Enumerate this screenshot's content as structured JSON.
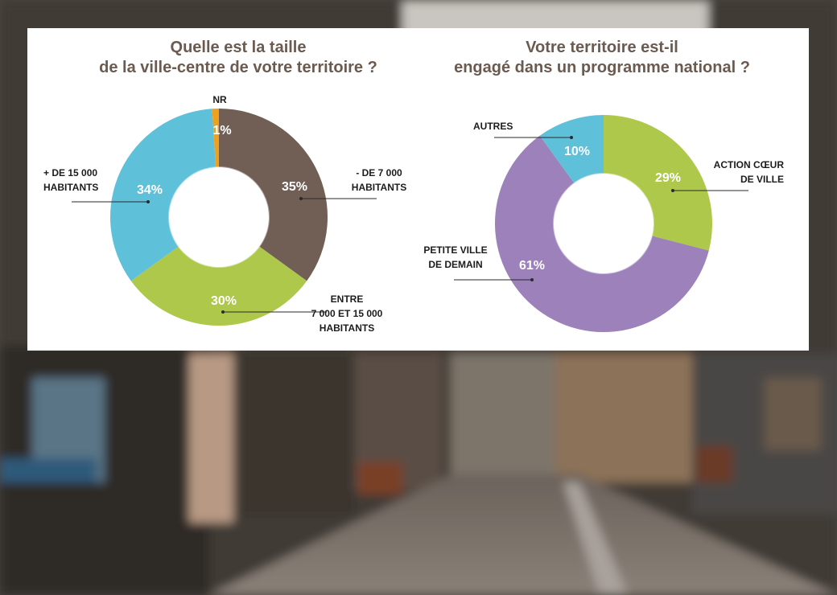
{
  "colors": {
    "brown": "#715e55",
    "green": "#adc84a",
    "blue": "#5fc0da",
    "orange": "#f0a11c",
    "purple": "#9d81ba",
    "title": "#6b5a50"
  },
  "chart_data": [
    {
      "type": "pie",
      "title_lines": [
        "Quelle est la taille",
        "de la ville-centre de votre territoire ?"
      ],
      "slices": [
        {
          "label_lines": [
            "- DE 7 000",
            "HABITANTS"
          ],
          "value": 35,
          "value_label": "35%",
          "color": "#715e55"
        },
        {
          "label_lines": [
            "ENTRE",
            "7 000 ET 15 000",
            "HABITANTS"
          ],
          "value": 30,
          "value_label": "30%",
          "color": "#adc84a"
        },
        {
          "label_lines": [
            "+ DE 15 000",
            "HABITANTS"
          ],
          "value": 34,
          "value_label": "34%",
          "color": "#5fc0da"
        },
        {
          "label_lines": [
            "NR"
          ],
          "value": 1,
          "value_label": "1%",
          "color": "#f0a11c"
        }
      ]
    },
    {
      "type": "pie",
      "title_lines": [
        "Votre territoire est-il",
        "engagé dans un programme national ?"
      ],
      "slices": [
        {
          "label_lines": [
            "ACTION CŒUR",
            "DE VILLE"
          ],
          "value": 29,
          "value_label": "29%",
          "color": "#adc84a"
        },
        {
          "label_lines": [
            "PETITE VILLE",
            "DE DEMAIN"
          ],
          "value": 61,
          "value_label": "61%",
          "color": "#9d81ba"
        },
        {
          "label_lines": [
            "AUTRES"
          ],
          "value": 10,
          "value_label": "10%",
          "color": "#5fc0da"
        }
      ]
    }
  ]
}
